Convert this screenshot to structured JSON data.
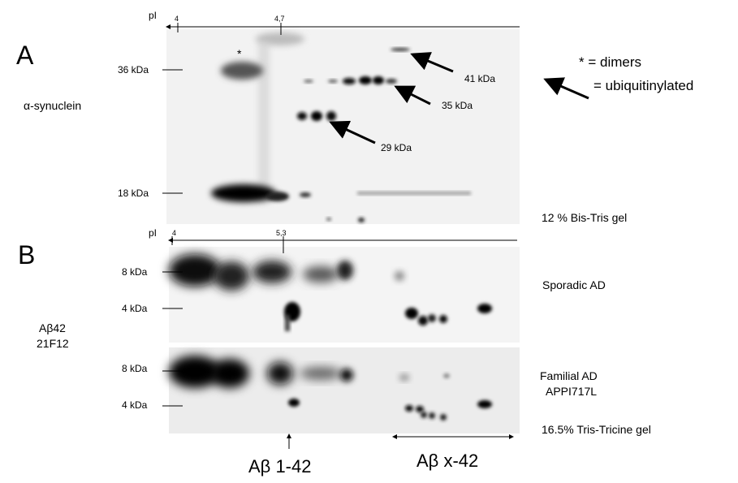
{
  "panel_a": {
    "letter": "A",
    "antibody": "α-synuclein",
    "axis_label": "pI",
    "ph_start": "4",
    "ph_mark": "4,7",
    "mw_markers": [
      "36 kDa",
      "18 kDa"
    ],
    "dimer_star": "*",
    "arrow_labels": [
      "41 kDa",
      "35 kDa",
      "29 kDa"
    ],
    "legend_dimers": "* = dimers",
    "legend_ubiq": "= ubiquitinylated",
    "gel_type": "12 % Bis-Tris gel"
  },
  "panel_b": {
    "letter": "B",
    "antibody_line1": "Aβ42",
    "antibody_line2": "21F12",
    "axis_label": "pI",
    "ph_start": "4",
    "ph_mark": "5,3",
    "mw_markers_top": [
      "8 kDa",
      "4 kDa"
    ],
    "mw_markers_bottom": [
      "8 kDa",
      "4 kDa"
    ],
    "sample_top": "Sporadic AD",
    "sample_bottom_line1": "Familial AD",
    "sample_bottom_line2": "APPI717L",
    "gel_type": "16.5% Tris-Tricine gel",
    "species_1": "Aβ 1-42",
    "species_x": "Aβ x-42"
  }
}
